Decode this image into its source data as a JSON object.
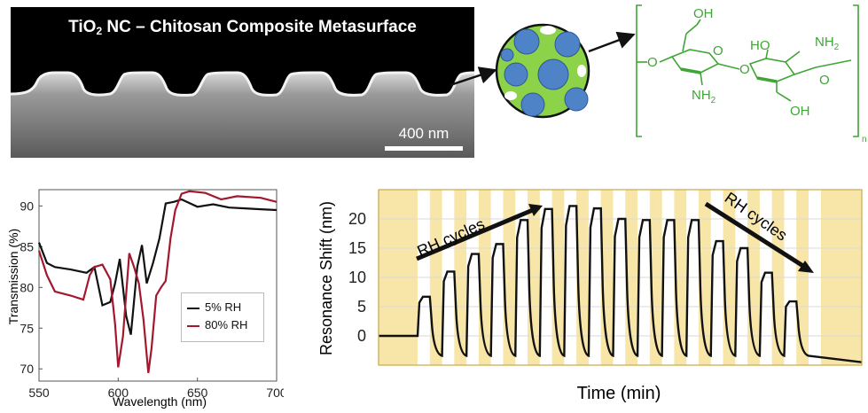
{
  "sem": {
    "title_main": "TiO",
    "title_sub": "2",
    "title_rest": " NC – Chitosan Composite Metasurface",
    "scale_label": "400 nm"
  },
  "structure": {
    "oh_top": "OH",
    "nh2_right": "NH",
    "ho_mid": "HO",
    "nh2_bottom": "NH",
    "oh_bottom": "OH",
    "o_ring1": "O",
    "o_ring2": "O",
    "o_link": "O",
    "o_left": "O",
    "subscript_2a": "2",
    "subscript_2b": "2",
    "subscript_n": "n",
    "color": "#3fa535"
  },
  "transmission": {
    "ylabel": "Transmission (%)",
    "xlabel": "Wavelength (nm)",
    "xticks": [
      "550",
      "600",
      "650",
      "700"
    ],
    "yticks": [
      "70",
      "75",
      "80",
      "85",
      "90"
    ],
    "legend": [
      "5% RH",
      "80% RH"
    ]
  },
  "shift": {
    "ylabel": "Resonance Shift (nm)",
    "xlabel": "Time (min)",
    "yticks": [
      "0",
      "5",
      "10",
      "15",
      "20"
    ],
    "annotation_left": "RH cycles",
    "annotation_right": "RH cycles"
  },
  "chart_data": [
    {
      "type": "line",
      "xlabel": "Wavelength (nm)",
      "ylabel": "Transmission (%)",
      "xlim": [
        550,
        700
      ],
      "ylim": [
        68.5,
        92
      ],
      "grid": false,
      "legend_position": "bottom-right",
      "series": [
        {
          "name": "5% RH",
          "color": "#111111",
          "x": [
            550,
            555,
            560,
            570,
            580,
            585,
            590,
            595,
            598,
            601,
            603,
            605,
            608,
            612,
            615,
            618,
            622,
            626,
            630,
            635,
            640,
            650,
            660,
            670,
            680,
            690,
            700
          ],
          "y": [
            85.5,
            83.0,
            82.5,
            82.2,
            81.8,
            82.5,
            77.8,
            78.2,
            80.5,
            83.5,
            80.0,
            76.5,
            74.2,
            82.5,
            85.2,
            80.5,
            83.0,
            86.0,
            90.3,
            90.5,
            90.8,
            89.9,
            90.2,
            89.8,
            89.7,
            89.6,
            89.5
          ]
        },
        {
          "name": "80% RH",
          "color": "#a3182e",
          "x": [
            550,
            555,
            560,
            570,
            578,
            582,
            585,
            590,
            595,
            598,
            600,
            603,
            607,
            610,
            613,
            616,
            619,
            621,
            624,
            627,
            630,
            633,
            636,
            640,
            645,
            655,
            665,
            675,
            690,
            700
          ],
          "y": [
            84.5,
            81.5,
            79.5,
            79.0,
            78.5,
            81.5,
            82.5,
            82.8,
            81.0,
            75.5,
            70.2,
            74.0,
            84.2,
            82.5,
            80.5,
            76.0,
            69.5,
            72.5,
            79.0,
            80.0,
            80.8,
            86.0,
            89.5,
            91.5,
            91.8,
            91.6,
            90.8,
            91.2,
            91.0,
            90.5
          ]
        }
      ]
    },
    {
      "type": "line",
      "xlabel": "Time (min)",
      "ylabel": "Resonance Shift (nm)",
      "ylim": [
        -5,
        25
      ],
      "grid": true,
      "shaded_bands_color": "#f7e6a8",
      "series": [
        {
          "name": "",
          "color": "#111111",
          "baseline": 0,
          "cycle_peaks": [
            6.7,
            11.0,
            14.0,
            15.7,
            19.8,
            21.7,
            22.2,
            21.8,
            20.0,
            19.8,
            19.8,
            19.8,
            16.2,
            15.0,
            10.8,
            5.9
          ]
        }
      ]
    }
  ]
}
